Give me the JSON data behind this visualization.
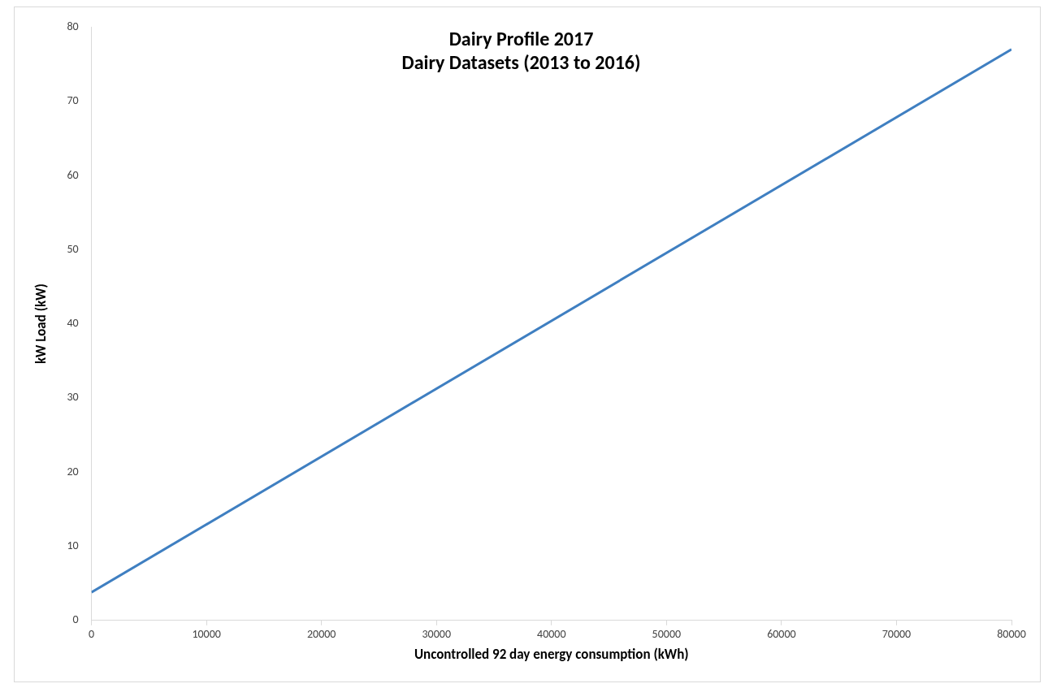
{
  "chart_data": {
    "type": "line",
    "title": [
      "Dairy Profile 2017",
      "Dairy Datasets (2013 to 2016)"
    ],
    "xlabel": "Uncontrolled 92 day energy consumption (kWh)",
    "ylabel": "kW Load (kW)",
    "x": [
      0,
      80000
    ],
    "series": [
      {
        "color": "#3f7fc1",
        "values": [
          3.8,
          77
        ]
      }
    ],
    "xlim": [
      0,
      80000
    ],
    "xticks": [
      0,
      10000,
      20000,
      30000,
      40000,
      50000,
      60000,
      70000,
      80000
    ],
    "ylim": [
      0,
      80
    ],
    "yticks": [
      0,
      10,
      20,
      30,
      40,
      50,
      60,
      70,
      80
    ],
    "grid": false,
    "legend": false,
    "marker": "none",
    "line_style": "solid"
  }
}
